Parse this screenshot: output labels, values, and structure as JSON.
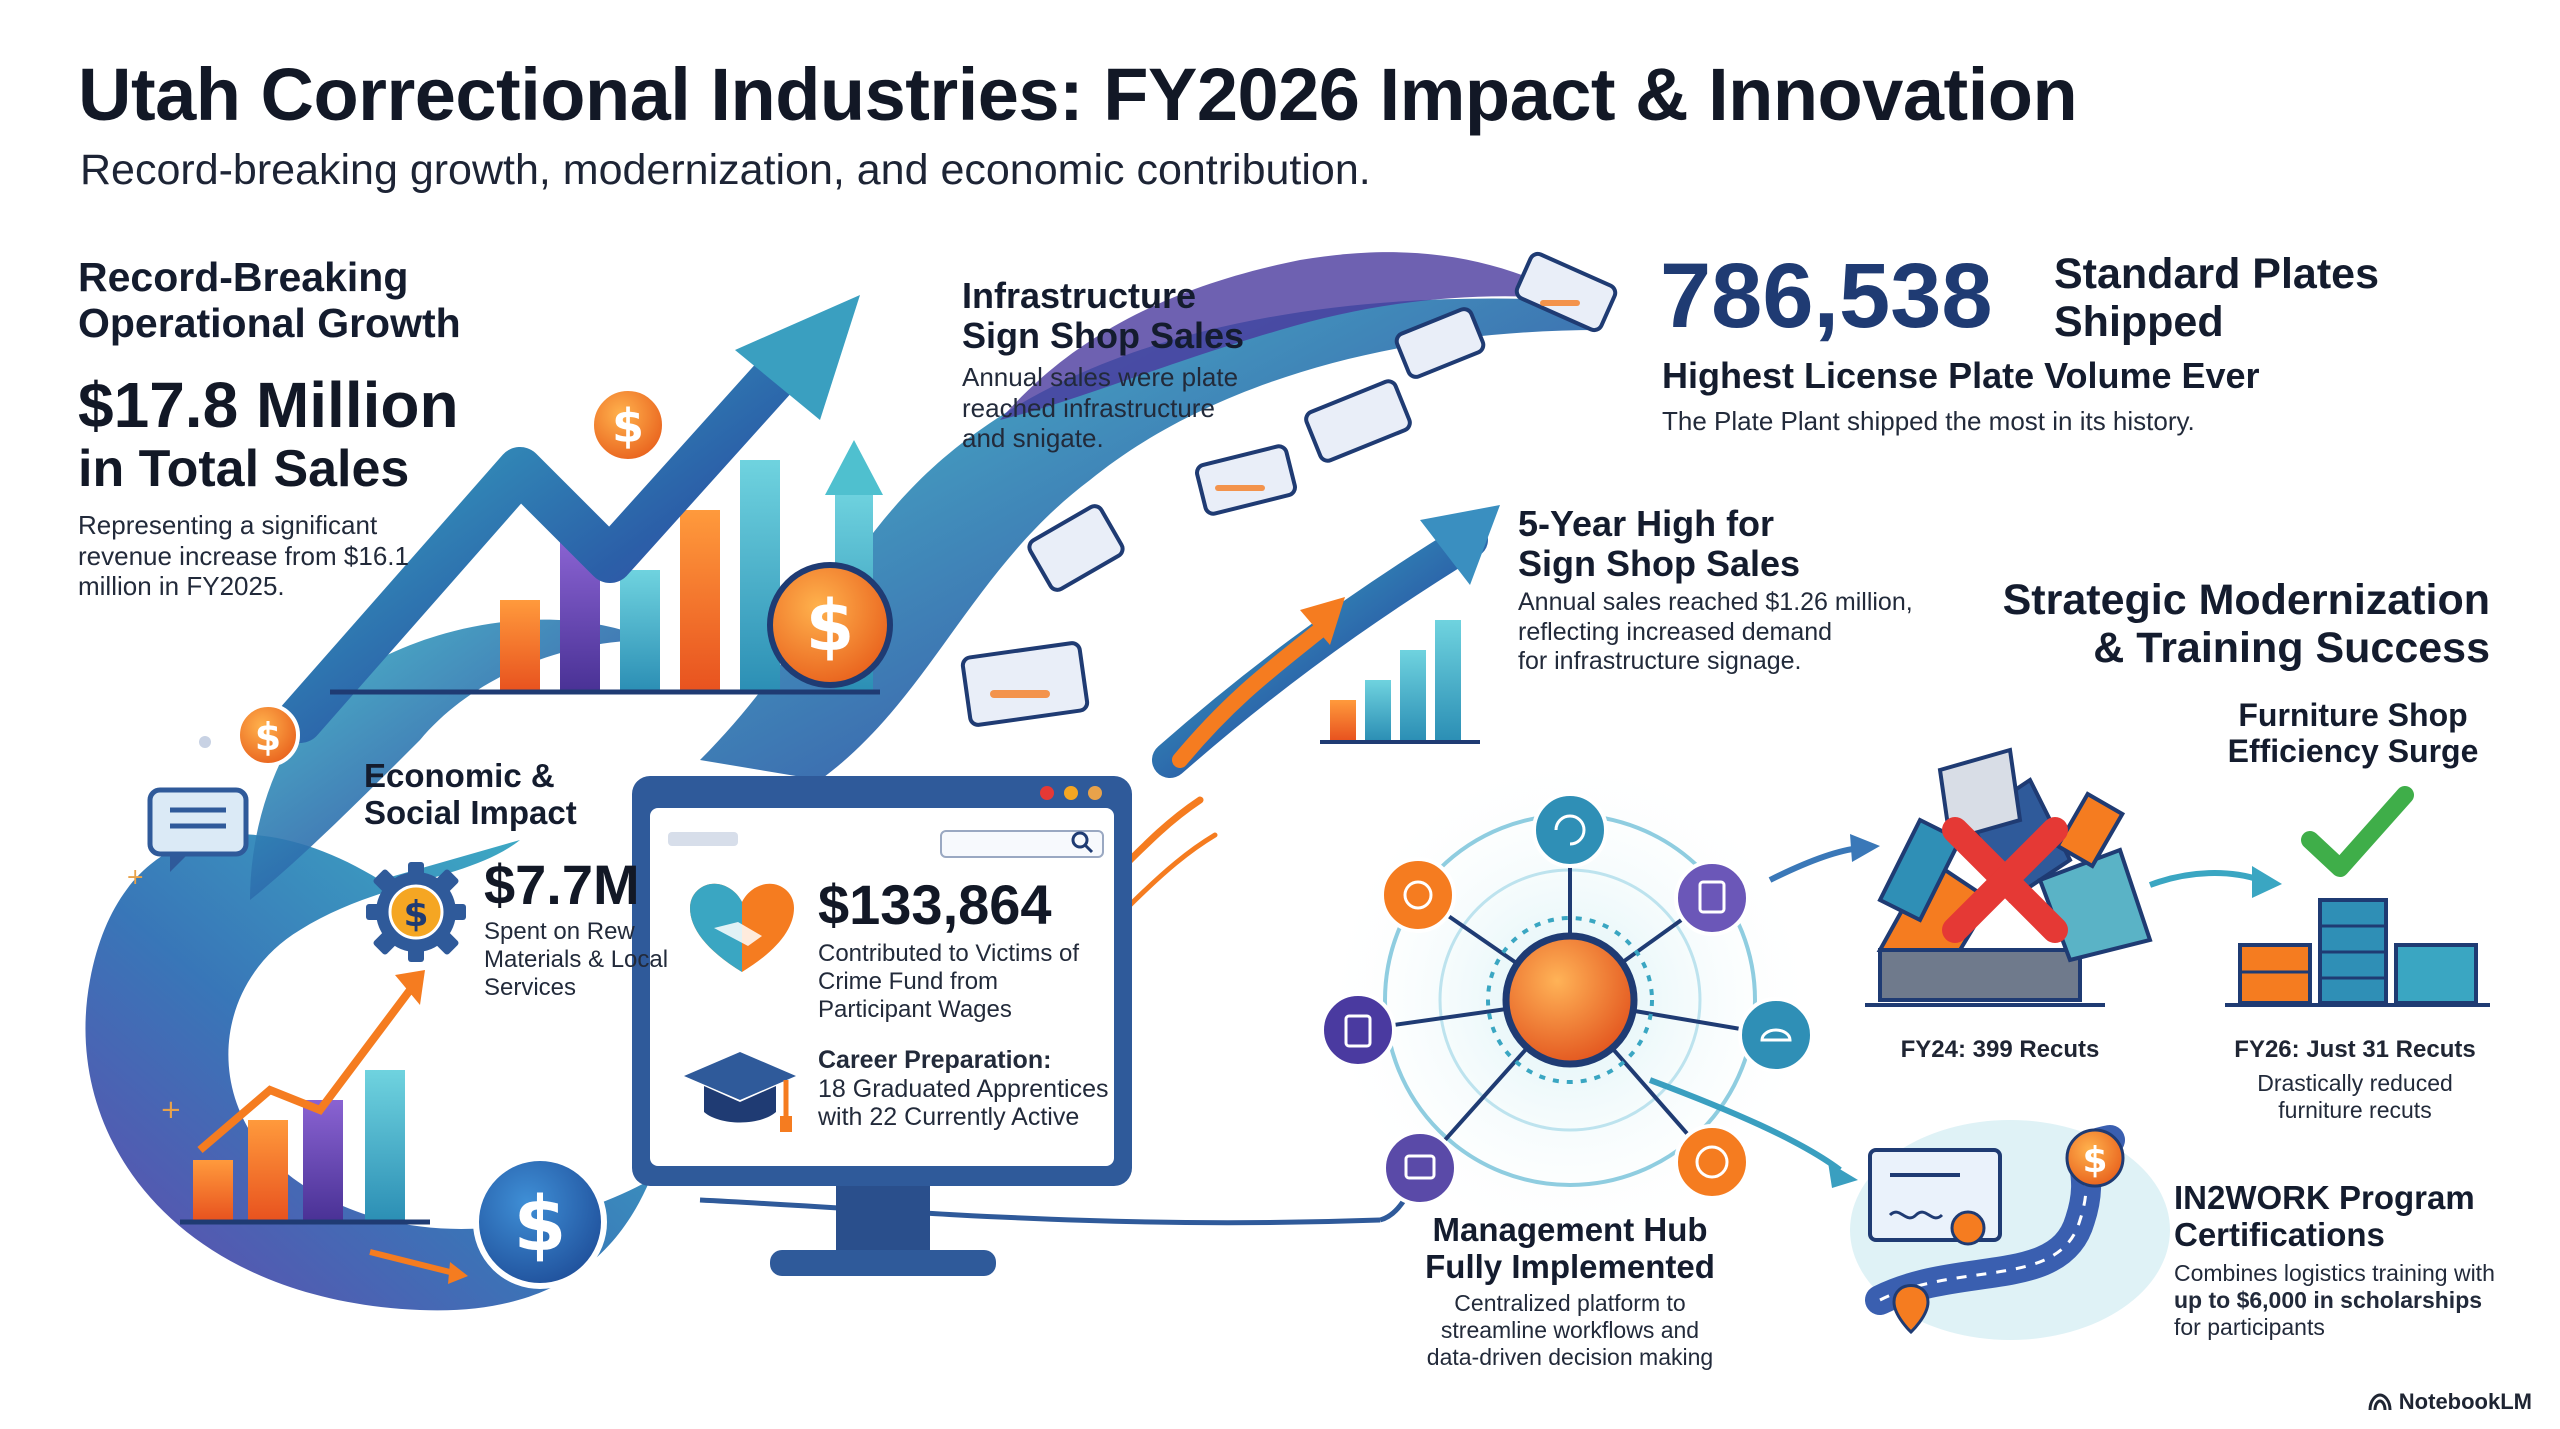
{
  "header": {
    "title": "Utah Correctional Industries: FY2026 Impact & Innovation",
    "subtitle": "Record-breaking growth, modernization, and economic contribution."
  },
  "growth": {
    "heading_line1": "Record-Breaking",
    "heading_line2": "Operational Growth",
    "amount_line1": "$17.8 Million",
    "amount_line2": "in Total Sales",
    "desc_line1": "Representing a significant",
    "desc_line2": "revenue increase from $16.1",
    "desc_line3": "million in FY2025."
  },
  "infrastructure": {
    "heading_line1": "Infrastructure",
    "heading_line2": "Sign Shop Sales",
    "desc_line1": "Annual sales were plate",
    "desc_line2": "reached infrastructure",
    "desc_line3": "and snigate."
  },
  "plates": {
    "number": "786,538",
    "label_line1": "Standard Plates",
    "label_line2": "Shipped",
    "headline": "Highest License Plate Volume Ever",
    "desc": "The Plate Plant shipped the most in its history."
  },
  "sign_shop": {
    "heading_line1": "5-Year High for",
    "heading_line2": "Sign Shop Sales",
    "desc_line1": "Annual sales reached $1.26 million,",
    "desc_line2": "reflecting increased demand",
    "desc_line3": "for infrastructure signage."
  },
  "economic": {
    "heading_line1": "Economic &",
    "heading_line2": "Social Impact",
    "materials_amount": "$7.7M",
    "materials_line1": "Spent on Rew",
    "materials_line2": "Materials & Local",
    "materials_line3": "Services",
    "victims_amount": "$133,864",
    "victims_line1": "Contributed to Victims of",
    "victims_line2": "Crime Fund from",
    "victims_line3": "Participant Wages",
    "career_title": "Career Preparation:",
    "career_line1": "18 Graduated Apprentices",
    "career_line2": "with 22 Currently Active"
  },
  "modernization": {
    "heading_line1": "Strategic Modernization",
    "heading_line2": "& Training Success"
  },
  "furniture": {
    "heading_line1": "Furniture Shop",
    "heading_line2": "Efficiency Surge",
    "before_label": "FY24: 399 Recuts",
    "after_label": "FY26: Just 31 Recuts",
    "after_desc_line1": "Drastically reduced",
    "after_desc_line2": "furniture recuts"
  },
  "hub": {
    "heading_line1": "Management Hub",
    "heading_line2": "Fully Implemented",
    "desc_line1": "Centralized platform to",
    "desc_line2": "streamline workflows and",
    "desc_line3": "data-driven decision making"
  },
  "in2work": {
    "heading_line1": "IN2WORK Program",
    "heading_line2": "Certifications",
    "desc_line1": "Combines logistics training with",
    "desc_line2": "up to $6,000 in scholarships",
    "desc_line3": "for participants"
  },
  "footer": {
    "brand": "NotebookLM"
  },
  "colors": {
    "navy": "#1f3b73",
    "teal": "#2fa3b8",
    "orange": "#f57c20",
    "purple": "#5a4aa8",
    "red": "#e53935",
    "green": "#3fae49"
  }
}
